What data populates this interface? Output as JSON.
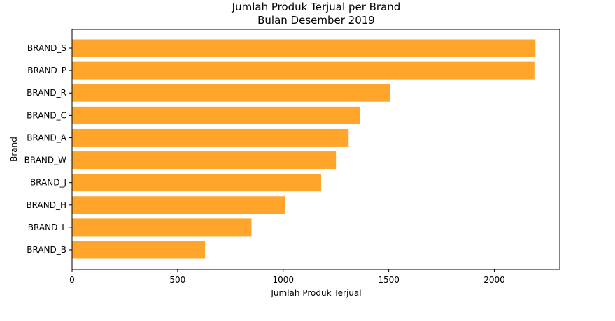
{
  "chart_data": {
    "type": "bar",
    "orientation": "horizontal",
    "title": "Jumlah Produk Terjual per Brand",
    "subtitle": "Bulan Desember 2019",
    "xlabel": "Jumlah Produk Terjual",
    "ylabel": "Brand",
    "categories": [
      "BRAND_S",
      "BRAND_P",
      "BRAND_R",
      "BRAND_C",
      "BRAND_A",
      "BRAND_W",
      "BRAND_J",
      "BRAND_H",
      "BRAND_L",
      "BRAND_B"
    ],
    "values": [
      2195,
      2190,
      1505,
      1365,
      1310,
      1250,
      1180,
      1010,
      850,
      630
    ],
    "xlim": [
      0,
      2310
    ],
    "xticks": [
      0,
      500,
      1000,
      1500,
      2000
    ],
    "bar_color": "#ffa52c",
    "grid": false,
    "legend": "none"
  }
}
